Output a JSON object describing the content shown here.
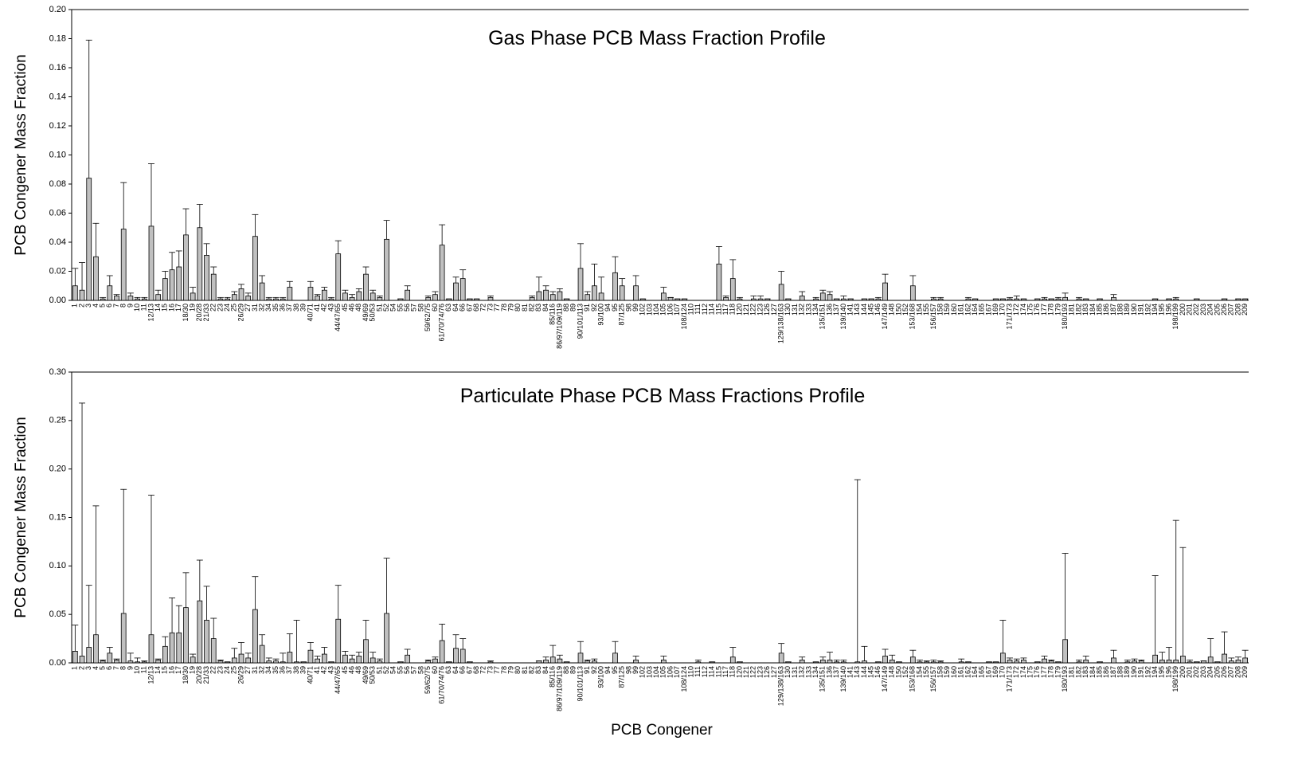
{
  "chart_data": [
    {
      "type": "bar",
      "title": "Gas Phase PCB Mass Fraction Profile",
      "y_label": "PCB Congener Mass Fraction",
      "color": "#c0c0c0",
      "categories": [
        "1",
        "2",
        "3",
        "4",
        "5",
        "6",
        "7",
        "8",
        "9",
        "10",
        "11",
        "12/13",
        "14",
        "15",
        "16",
        "17",
        "18/30",
        "19",
        "20/28",
        "21/33",
        "22",
        "23",
        "24",
        "25",
        "26/29",
        "27",
        "31",
        "32",
        "34",
        "35",
        "36",
        "37",
        "38",
        "39",
        "40/71",
        "41",
        "42",
        "43",
        "44/47/65",
        "45",
        "46",
        "48",
        "49/69",
        "50/53",
        "51",
        "52",
        "54",
        "55",
        "56",
        "57",
        "58",
        "59/62/75",
        "60",
        "61/70/74/76",
        "63",
        "64",
        "66",
        "67",
        "68",
        "72",
        "73",
        "77",
        "78",
        "79",
        "80",
        "81",
        "82",
        "83",
        "84",
        "85/116",
        "86/97/109/119",
        "88",
        "89",
        "90/101/113",
        "91",
        "92",
        "93/100",
        "94",
        "95",
        "87/125",
        "98",
        "99",
        "102",
        "103",
        "104",
        "105",
        "106",
        "107",
        "108/124",
        "110",
        "111",
        "112",
        "114",
        "115",
        "117",
        "118",
        "120",
        "121",
        "122",
        "123",
        "126",
        "127",
        "129/138/163",
        "130",
        "131",
        "132",
        "133",
        "134",
        "135/151",
        "136",
        "137",
        "139/140",
        "141",
        "143",
        "144",
        "145",
        "146",
        "147/149",
        "148",
        "150",
        "152",
        "153/168",
        "154",
        "155",
        "156/157",
        "158",
        "159",
        "160",
        "161",
        "162",
        "164",
        "165",
        "167",
        "169",
        "170",
        "171/173",
        "172",
        "174",
        "175",
        "176",
        "177",
        "178",
        "179",
        "180/193",
        "181",
        "182",
        "183",
        "184",
        "185",
        "186",
        "187",
        "188",
        "189",
        "190",
        "191",
        "192",
        "194",
        "195",
        "196",
        "198/199",
        "200",
        "201",
        "202",
        "203",
        "204",
        "205",
        "206",
        "207",
        "208",
        "209"
      ],
      "values": [
        0.01,
        0.007,
        0.084,
        0.03,
        0.001,
        0.01,
        0.003,
        0.049,
        0.003,
        0.001,
        0.001,
        0.051,
        0.004,
        0.015,
        0.021,
        0.023,
        0.045,
        0.005,
        0.05,
        0.031,
        0.018,
        0.001,
        0.001,
        0.004,
        0.008,
        0.003,
        0.044,
        0.012,
        0.001,
        0.001,
        0.001,
        0.009,
        0,
        0,
        0.009,
        0.003,
        0.007,
        0.001,
        0.032,
        0.005,
        0.002,
        0.006,
        0.018,
        0.005,
        0.002,
        0.042,
        0,
        0.001,
        0.007,
        0,
        0,
        0.002,
        0.004,
        0.038,
        0.001,
        0.012,
        0.015,
        0.001,
        0.001,
        0,
        0.002,
        0,
        0,
        0,
        0,
        0,
        0.002,
        0.006,
        0.007,
        0.004,
        0.006,
        0.001,
        0,
        0.022,
        0.004,
        0.01,
        0.005,
        0,
        0.019,
        0.01,
        0,
        0.01,
        0.001,
        0,
        0,
        0.005,
        0.002,
        0.001,
        0.001,
        0,
        0,
        0,
        0,
        0.025,
        0.002,
        0.015,
        0.001,
        0,
        0.001,
        0.001,
        0.001,
        0,
        0.011,
        0.001,
        0,
        0.003,
        0,
        0.001,
        0.005,
        0.004,
        0.001,
        0.001,
        0.001,
        0,
        0.001,
        0.001,
        0.001,
        0.012,
        0,
        0,
        0,
        0.01,
        0,
        0,
        0.001,
        0.001,
        0,
        0,
        0,
        0.001,
        0.001,
        0,
        0,
        0.001,
        0.001,
        0.001,
        0.001,
        0.001,
        0,
        0.001,
        0.001,
        0.001,
        0.001,
        0.002,
        0,
        0.001,
        0.001,
        0,
        0.001,
        0,
        0.002,
        0,
        0,
        0,
        0,
        0,
        0.001,
        0,
        0.001,
        0.001,
        0,
        0,
        0.001,
        0,
        0,
        0,
        0.001,
        0,
        0.001,
        0.001
      ],
      "errors": [
        0.012,
        0.019,
        0.095,
        0.023,
        0.001,
        0.007,
        0.001,
        0.032,
        0.002,
        0.001,
        0.001,
        0.043,
        0.003,
        0.005,
        0.012,
        0.011,
        0.018,
        0.004,
        0.016,
        0.008,
        0.005,
        0.001,
        0.001,
        0.002,
        0.003,
        0.002,
        0.015,
        0.005,
        0.001,
        0.001,
        0.001,
        0.004,
        0,
        0,
        0.004,
        0.001,
        0.002,
        0.001,
        0.009,
        0.002,
        0.002,
        0.002,
        0.005,
        0.002,
        0.001,
        0.013,
        0,
        0,
        0.003,
        0,
        0,
        0.001,
        0.002,
        0.014,
        0,
        0.004,
        0.006,
        0,
        0,
        0,
        0.001,
        0,
        0,
        0,
        0,
        0,
        0.001,
        0.01,
        0.003,
        0.002,
        0.002,
        0,
        0,
        0.017,
        0.002,
        0.015,
        0.011,
        0,
        0.011,
        0.005,
        0,
        0.007,
        0,
        0,
        0,
        0.004,
        0,
        0,
        0,
        0,
        0,
        0,
        0,
        0.012,
        0.001,
        0.013,
        0.001,
        0,
        0.002,
        0.002,
        0,
        0,
        0.009,
        0,
        0,
        0.003,
        0,
        0.001,
        0.002,
        0.002,
        0,
        0.002,
        0,
        0,
        0,
        0,
        0.001,
        0.006,
        0,
        0,
        0,
        0.007,
        0,
        0,
        0.001,
        0.001,
        0,
        0,
        0,
        0.001,
        0,
        0,
        0,
        0,
        0,
        0.001,
        0.002,
        0,
        0,
        0,
        0.001,
        0,
        0.001,
        0.003,
        0,
        0.001,
        0,
        0,
        0,
        0,
        0.002,
        0,
        0,
        0,
        0,
        0,
        0,
        0,
        0,
        0.001,
        0,
        0,
        0,
        0,
        0,
        0,
        0,
        0,
        0,
        0
      ],
      "ylim": [
        0,
        0.2
      ],
      "yticks": [
        {
          "value": 0,
          "label": "0.00"
        },
        {
          "value": 0.02,
          "label": "0.02"
        },
        {
          "value": 0.04,
          "label": "0.04"
        },
        {
          "value": 0.06,
          "label": "0.06"
        },
        {
          "value": 0.08,
          "label": "0.08"
        },
        {
          "value": 0.1,
          "label": "0.10"
        },
        {
          "value": 0.12,
          "label": "0.12"
        },
        {
          "value": 0.14,
          "label": "0.14"
        },
        {
          "value": 0.16,
          "label": "0.16"
        },
        {
          "value": 0.18,
          "label": "0.18"
        },
        {
          "value": 0.2,
          "label": "0.20"
        }
      ]
    },
    {
      "type": "bar",
      "title": "Particulate Phase PCB Mass Fractions Profile",
      "y_label": "PCB Congener Mass Fraction",
      "x_label": "PCB Congener",
      "color": "#c0c0c0",
      "categories": [
        "1",
        "2",
        "3",
        "4",
        "5",
        "6",
        "7",
        "8",
        "9",
        "10",
        "11",
        "12/13",
        "14",
        "15",
        "16",
        "17",
        "18/30",
        "19",
        "20/28",
        "21/33",
        "22",
        "23",
        "24",
        "25",
        "26/29",
        "27",
        "31",
        "32",
        "34",
        "35",
        "36",
        "37",
        "38",
        "39",
        "40/71",
        "41",
        "42",
        "43",
        "44/47/65",
        "45",
        "46",
        "48",
        "49/69",
        "50/53",
        "51",
        "52",
        "54",
        "55",
        "56",
        "57",
        "58",
        "59/62/75",
        "60",
        "61/70/74/76",
        "63",
        "64",
        "66",
        "67",
        "68",
        "72",
        "73",
        "77",
        "78",
        "79",
        "80",
        "81",
        "82",
        "83",
        "84",
        "85/116",
        "86/97/109/119",
        "88",
        "89",
        "90/101/113",
        "91",
        "92",
        "93/100",
        "94",
        "95",
        "87/125",
        "98",
        "99",
        "102",
        "103",
        "104",
        "105",
        "106",
        "107",
        "108/124",
        "110",
        "111",
        "112",
        "114",
        "115",
        "117",
        "118",
        "120",
        "121",
        "122",
        "123",
        "126",
        "127",
        "129/138/163",
        "130",
        "131",
        "132",
        "133",
        "134",
        "135/151",
        "136",
        "137",
        "139/140",
        "141",
        "143",
        "144",
        "145",
        "146",
        "147/149",
        "148",
        "150",
        "152",
        "153/168",
        "154",
        "155",
        "156/157",
        "158",
        "159",
        "160",
        "161",
        "162",
        "164",
        "165",
        "167",
        "169",
        "170",
        "171/173",
        "172",
        "174",
        "175",
        "176",
        "177",
        "178",
        "179",
        "180/193",
        "181",
        "182",
        "183",
        "184",
        "185",
        "186",
        "187",
        "188",
        "189",
        "190",
        "191",
        "192",
        "194",
        "195",
        "196",
        "198/199",
        "200",
        "201",
        "202",
        "203",
        "204",
        "205",
        "206",
        "207",
        "208",
        "209"
      ],
      "values": [
        0.012,
        0.007,
        0.016,
        0.029,
        0.002,
        0.01,
        0.003,
        0.051,
        0.002,
        0.001,
        0.001,
        0.029,
        0.003,
        0.017,
        0.031,
        0.031,
        0.057,
        0.006,
        0.064,
        0.044,
        0.025,
        0.002,
        0.001,
        0.005,
        0.009,
        0.005,
        0.055,
        0.018,
        0.002,
        0.002,
        0.001,
        0.011,
        0.001,
        0.001,
        0.013,
        0.004,
        0.009,
        0.001,
        0.045,
        0.008,
        0.004,
        0.007,
        0.024,
        0.005,
        0.002,
        0.051,
        0,
        0.001,
        0.008,
        0,
        0,
        0.002,
        0.004,
        0.023,
        0.001,
        0.015,
        0.014,
        0.001,
        0,
        0,
        0.001,
        0,
        0,
        0,
        0,
        0,
        0,
        0.002,
        0.003,
        0.006,
        0.004,
        0.001,
        0,
        0.01,
        0.002,
        0.002,
        0,
        0,
        0.01,
        0,
        0,
        0.003,
        0,
        0,
        0,
        0.003,
        0,
        0,
        0,
        0,
        0.001,
        0,
        0.001,
        0,
        0,
        0.006,
        0.001,
        0,
        0,
        0,
        0,
        0,
        0.01,
        0.001,
        0,
        0.003,
        0,
        0.001,
        0.003,
        0.003,
        0.001,
        0.001,
        0,
        0.001,
        0.002,
        0,
        0.001,
        0.007,
        0.003,
        0.001,
        0,
        0.006,
        0.001,
        0.001,
        0.001,
        0.001,
        0,
        0,
        0.001,
        0.001,
        0,
        0,
        0.001,
        0.001,
        0.01,
        0.003,
        0.002,
        0.003,
        0,
        0.001,
        0.004,
        0.002,
        0.001,
        0.024,
        0,
        0.001,
        0.003,
        0,
        0.001,
        0,
        0.005,
        0,
        0.001,
        0.002,
        0.002,
        0,
        0.008,
        0.003,
        0.003,
        0.003,
        0.007,
        0.001,
        0.001,
        0.002,
        0.006,
        0.001,
        0.009,
        0.002,
        0.003,
        0.005
      ],
      "errors": [
        0.027,
        0.261,
        0.064,
        0.133,
        0.001,
        0.006,
        0.001,
        0.128,
        0.008,
        0.004,
        0.001,
        0.144,
        0.001,
        0.01,
        0.036,
        0.028,
        0.036,
        0.003,
        0.042,
        0.035,
        0.021,
        0.001,
        0,
        0.01,
        0.012,
        0.005,
        0.034,
        0.011,
        0.003,
        0.002,
        0.009,
        0.019,
        0.043,
        0,
        0.008,
        0.003,
        0.007,
        0,
        0.035,
        0.004,
        0.004,
        0.004,
        0.02,
        0.006,
        0.002,
        0.057,
        0,
        0,
        0.006,
        0,
        0,
        0.001,
        0.002,
        0.017,
        0,
        0.014,
        0.011,
        0,
        0,
        0,
        0.001,
        0,
        0,
        0,
        0,
        0,
        0,
        0,
        0.003,
        0.012,
        0.004,
        0,
        0,
        0.012,
        0.001,
        0.002,
        0,
        0,
        0.012,
        0,
        0,
        0.004,
        0,
        0,
        0,
        0.004,
        0,
        0,
        0,
        0,
        0.002,
        0,
        0,
        0,
        0,
        0.01,
        0,
        0,
        0,
        0,
        0,
        0,
        0.01,
        0,
        0,
        0.003,
        0,
        0,
        0.003,
        0.008,
        0.002,
        0.002,
        0,
        0.188,
        0.015,
        0,
        0,
        0.007,
        0.005,
        0,
        0,
        0.007,
        0.002,
        0.001,
        0.002,
        0.001,
        0,
        0,
        0.003,
        0,
        0,
        0,
        0,
        0,
        0.034,
        0.002,
        0.002,
        0.002,
        0,
        0,
        0.003,
        0.001,
        0,
        0.089,
        0,
        0.002,
        0.004,
        0,
        0,
        0,
        0.008,
        0,
        0.002,
        0.002,
        0.001,
        0,
        0.082,
        0.008,
        0.013,
        0.144,
        0.112,
        0.002,
        0,
        0,
        0.019,
        0,
        0.023,
        0.003,
        0.003,
        0.008
      ],
      "ylim": [
        0,
        0.3
      ],
      "yticks": [
        {
          "value": 0,
          "label": "0.00"
        },
        {
          "value": 0.05,
          "label": "0.05"
        },
        {
          "value": 0.1,
          "label": "0.10"
        },
        {
          "value": 0.15,
          "label": "0.15"
        },
        {
          "value": 0.2,
          "label": "0.20"
        },
        {
          "value": 0.25,
          "label": "0.25"
        },
        {
          "value": 0.3,
          "label": "0.30"
        }
      ]
    }
  ]
}
